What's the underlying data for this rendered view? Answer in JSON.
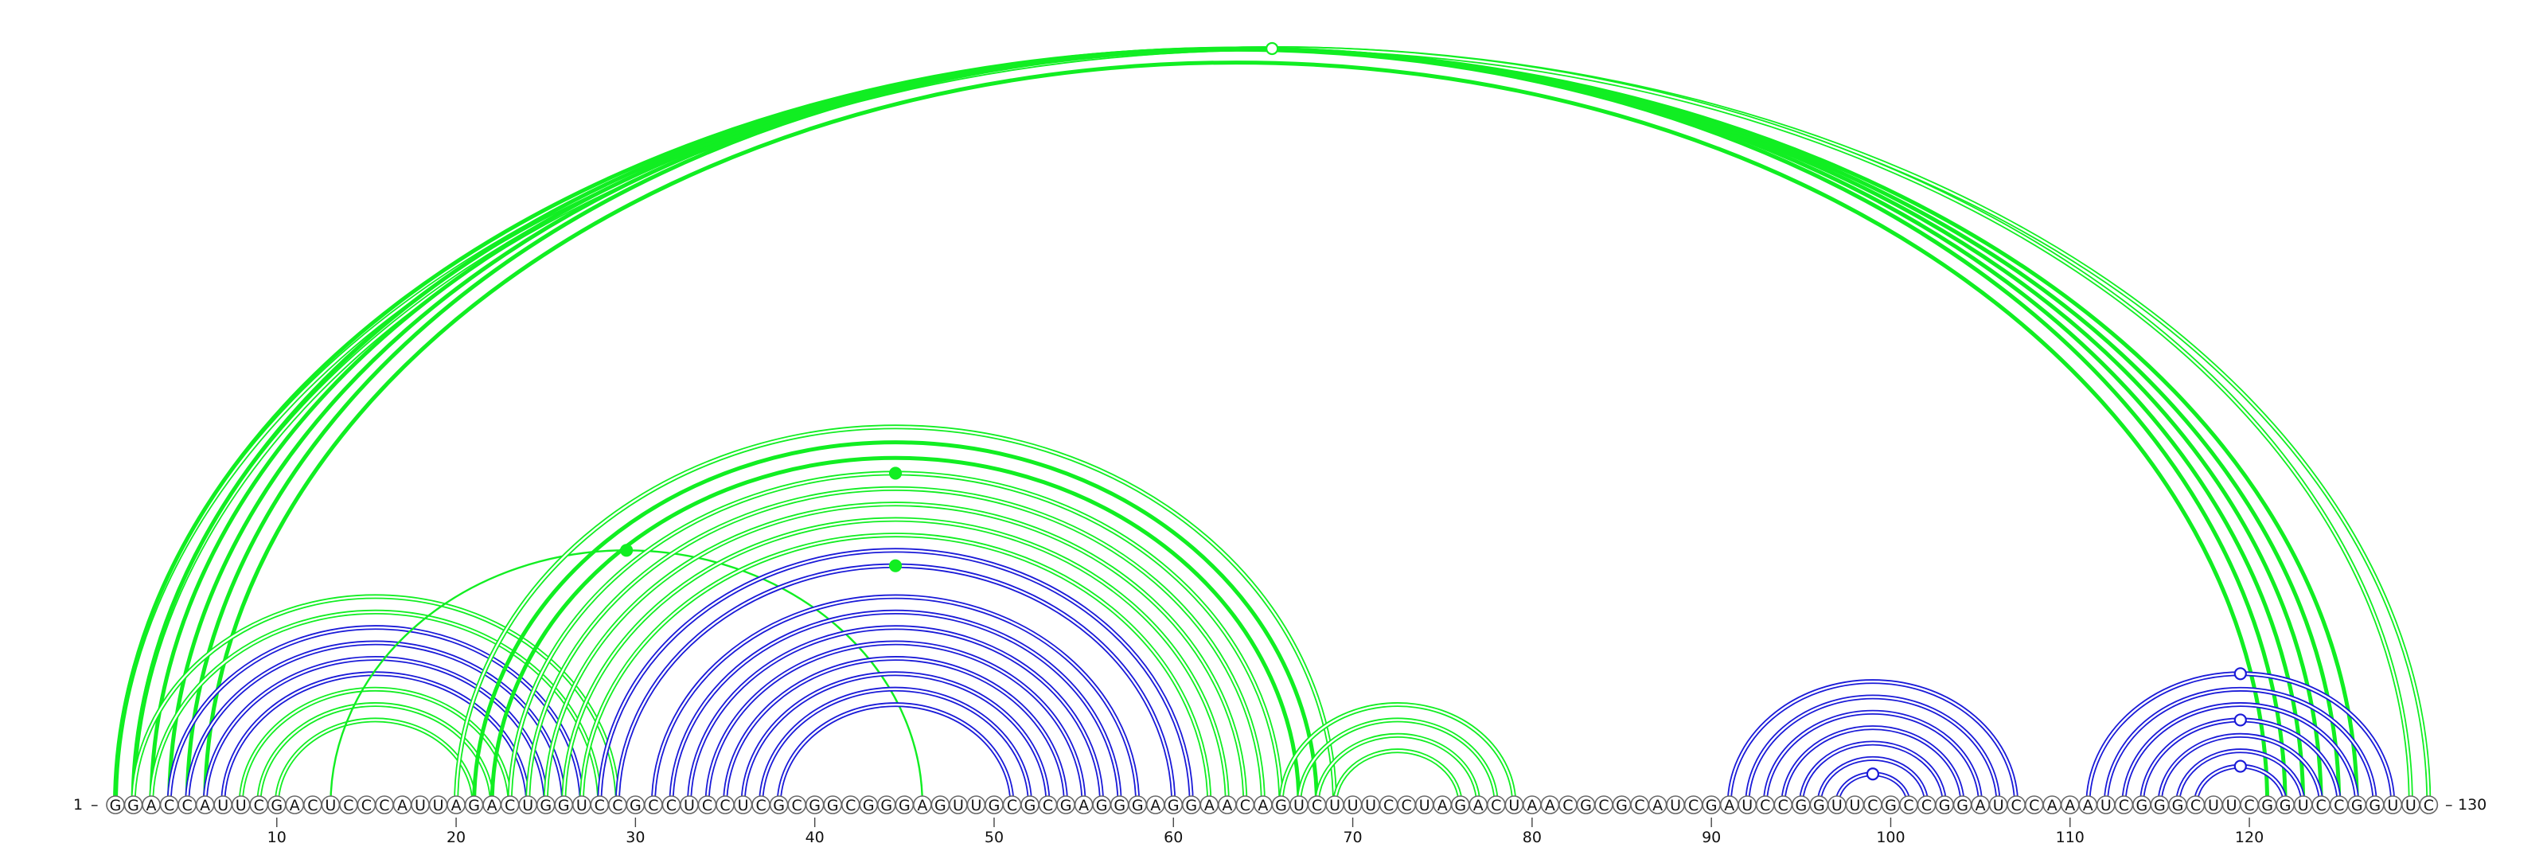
{
  "sequence": "GGACCAUUCGACUCCCAUUAGACUGGUCCGCCUCCUCGCGGCGGGAGUUGCGCGAGGGAGGAACAGUCUUUCCUAGACUAACGCGCAUCGAUCCGGUUCGCCGGAUCCAAAUCGGGCUUCGGUCCGGUUC",
  "labels": {
    "start_number": "1",
    "end_number": "130",
    "start_dash": "–",
    "end_dash": "–"
  },
  "ticks": [
    10,
    20,
    30,
    40,
    50,
    60,
    70,
    80,
    90,
    100,
    110,
    120
  ],
  "colors": {
    "green": "#11ee22",
    "blue": "#1a1ad8",
    "node_outline": "#666666"
  },
  "arcs": [
    {
      "i": 1,
      "j": 130,
      "color": "green",
      "style": "double"
    },
    {
      "i": 2,
      "j": 129,
      "color": "green",
      "style": "double"
    },
    {
      "i": 1,
      "j": 126,
      "color": "green",
      "style": "thick"
    },
    {
      "i": 2,
      "j": 125,
      "color": "green",
      "style": "thick"
    },
    {
      "i": 3,
      "j": 124,
      "color": "green",
      "style": "thick"
    },
    {
      "i": 4,
      "j": 123,
      "color": "green",
      "style": "thick"
    },
    {
      "i": 5,
      "j": 122,
      "color": "green",
      "style": "thick"
    },
    {
      "i": 6,
      "j": 121,
      "color": "green",
      "style": "thick"
    },
    {
      "i": 2,
      "j": 29,
      "color": "green",
      "style": "double"
    },
    {
      "i": 3,
      "j": 28,
      "color": "green",
      "style": "double"
    },
    {
      "i": 4,
      "j": 27,
      "color": "blue",
      "style": "double"
    },
    {
      "i": 5,
      "j": 26,
      "color": "blue",
      "style": "double"
    },
    {
      "i": 6,
      "j": 25,
      "color": "blue",
      "style": "double"
    },
    {
      "i": 7,
      "j": 24,
      "color": "blue",
      "style": "double"
    },
    {
      "i": 8,
      "j": 23,
      "color": "green",
      "style": "double"
    },
    {
      "i": 9,
      "j": 22,
      "color": "green",
      "style": "double"
    },
    {
      "i": 10,
      "j": 21,
      "color": "green",
      "style": "double"
    },
    {
      "i": 13,
      "j": 46,
      "color": "green",
      "style": "single"
    },
    {
      "i": 20,
      "j": 69,
      "color": "green",
      "style": "double"
    },
    {
      "i": 21,
      "j": 68,
      "color": "green",
      "style": "thick"
    },
    {
      "i": 22,
      "j": 67,
      "color": "green",
      "style": "thick"
    },
    {
      "i": 23,
      "j": 66,
      "color": "green",
      "style": "double"
    },
    {
      "i": 24,
      "j": 65,
      "color": "green",
      "style": "double"
    },
    {
      "i": 25,
      "j": 64,
      "color": "green",
      "style": "double"
    },
    {
      "i": 26,
      "j": 63,
      "color": "green",
      "style": "double"
    },
    {
      "i": 27,
      "j": 62,
      "color": "green",
      "style": "double"
    },
    {
      "i": 28,
      "j": 61,
      "color": "blue",
      "style": "double"
    },
    {
      "i": 29,
      "j": 60,
      "color": "blue",
      "style": "double"
    },
    {
      "i": 31,
      "j": 58,
      "color": "blue",
      "style": "double"
    },
    {
      "i": 32,
      "j": 57,
      "color": "blue",
      "style": "double"
    },
    {
      "i": 33,
      "j": 56,
      "color": "blue",
      "style": "double"
    },
    {
      "i": 34,
      "j": 55,
      "color": "blue",
      "style": "double"
    },
    {
      "i": 35,
      "j": 54,
      "color": "blue",
      "style": "double"
    },
    {
      "i": 36,
      "j": 53,
      "color": "blue",
      "style": "double"
    },
    {
      "i": 37,
      "j": 52,
      "color": "blue",
      "style": "double"
    },
    {
      "i": 38,
      "j": 51,
      "color": "blue",
      "style": "double"
    },
    {
      "i": 66,
      "j": 79,
      "color": "green",
      "style": "double"
    },
    {
      "i": 67,
      "j": 78,
      "color": "green",
      "style": "double"
    },
    {
      "i": 68,
      "j": 77,
      "color": "green",
      "style": "double"
    },
    {
      "i": 69,
      "j": 76,
      "color": "green",
      "style": "double"
    },
    {
      "i": 91,
      "j": 107,
      "color": "blue",
      "style": "double"
    },
    {
      "i": 92,
      "j": 106,
      "color": "blue",
      "style": "double"
    },
    {
      "i": 93,
      "j": 105,
      "color": "blue",
      "style": "double"
    },
    {
      "i": 94,
      "j": 104,
      "color": "blue",
      "style": "double"
    },
    {
      "i": 95,
      "j": 103,
      "color": "blue",
      "style": "double"
    },
    {
      "i": 96,
      "j": 102,
      "color": "blue",
      "style": "double"
    },
    {
      "i": 97,
      "j": 101,
      "color": "blue",
      "style": "double"
    },
    {
      "i": 111,
      "j": 128,
      "color": "blue",
      "style": "double"
    },
    {
      "i": 112,
      "j": 127,
      "color": "blue",
      "style": "double"
    },
    {
      "i": 113,
      "j": 126,
      "color": "blue",
      "style": "double"
    },
    {
      "i": 114,
      "j": 125,
      "color": "blue",
      "style": "double"
    },
    {
      "i": 115,
      "j": 124,
      "color": "blue",
      "style": "double"
    },
    {
      "i": 116,
      "j": 123,
      "color": "blue",
      "style": "double"
    },
    {
      "i": 117,
      "j": 122,
      "color": "blue",
      "style": "double"
    }
  ],
  "markers": [
    {
      "pos": 66,
      "arc_index": 0,
      "color": "green",
      "filled": false
    },
    {
      "pos": 45,
      "arc_index": 21,
      "color": "green",
      "filled": true
    },
    {
      "pos": 45,
      "arc_index": 27,
      "color": "green",
      "filled": true
    },
    {
      "pos": 15,
      "arc_index": 17,
      "color": "green",
      "filled": true
    },
    {
      "pos": 99,
      "arc_index": 46,
      "color": "blue",
      "filled": false
    },
    {
      "pos": 120,
      "arc_index": 47,
      "color": "blue",
      "filled": false
    },
    {
      "pos": 120,
      "arc_index": 50,
      "color": "blue",
      "filled": false
    },
    {
      "pos": 120,
      "arc_index": 53,
      "color": "blue",
      "filled": false
    }
  ]
}
